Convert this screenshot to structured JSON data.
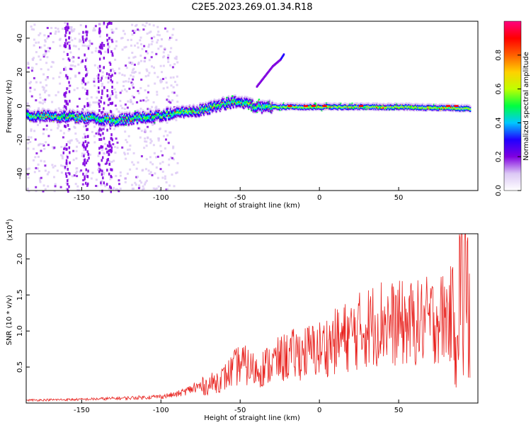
{
  "title": "C2E5.2023.269.01.34.R18",
  "chart_data": [
    {
      "type": "heatmap",
      "xlabel": "Height of straight line (km)",
      "ylabel": "Frequency (Hz)",
      "xlim": [
        -185,
        100
      ],
      "ylim": [
        -50,
        50
      ],
      "xticks": [
        -150,
        -100,
        -50,
        0,
        50
      ],
      "yticks": [
        -40,
        -20,
        0,
        20,
        40
      ],
      "colorbar": {
        "label": "Normalized spectral amplitude",
        "range": [
          0.0,
          1.0
        ],
        "ticks": [
          "0.0",
          "0.2",
          "0.4",
          "0.6",
          "0.8"
        ],
        "colormap": [
          "#ffffff",
          "#dcc8f5",
          "#8000e0",
          "#2000ff",
          "#00c8ff",
          "#00ff40",
          "#c0ff00",
          "#ffd000",
          "#ff6000",
          "#ff0000",
          "#ff0080"
        ]
      },
      "ridge": {
        "x": [
          -185,
          -150,
          -130,
          -110,
          -100,
          -90,
          -75,
          -60,
          -50,
          -40,
          -30,
          -20,
          0,
          50,
          95
        ],
        "y": [
          -5,
          -6,
          -8,
          -6,
          -5,
          -3,
          -2,
          2,
          3,
          0,
          0,
          0,
          0,
          0,
          -1
        ]
      },
      "branch": {
        "x": [
          -40,
          -35,
          -30,
          -25,
          -23
        ],
        "y": [
          12,
          18,
          24,
          28,
          31
        ]
      },
      "grid": false
    },
    {
      "type": "line",
      "xlabel": "Height of straight line (km)",
      "ylabel": "SNR (10 * v/v)",
      "multiplier": "(x10",
      "multiplier_exp": "4",
      "xlim": [
        -185,
        100
      ],
      "ylim": [
        0,
        23500
      ],
      "xticks": [
        -150,
        -100,
        -50,
        0,
        50
      ],
      "yticks": [
        5000,
        10000,
        15000,
        20000
      ],
      "ytick_labels": [
        "0.5",
        "1.0",
        "1.5",
        "2.0"
      ],
      "series": [
        {
          "color": "#e8201c",
          "envelope": {
            "x": [
              -185,
              -150,
              -120,
              -100,
              -90,
              -80,
              -70,
              -60,
              -50,
              -40,
              -30,
              -20,
              -10,
              0,
              10,
              20,
              30,
              40,
              45,
              50,
              60,
              70,
              80,
              85,
              88,
              90,
              92,
              95
            ],
            "y": [
              400,
              500,
              700,
              900,
              1200,
              2000,
              2500,
              3500,
              5500,
              4500,
              5500,
              6500,
              7000,
              7500,
              8500,
              9500,
              10500,
              11500,
              11000,
              11000,
              11000,
              11500,
              12000,
              12500,
              15000,
              18000,
              12000,
              13000
            ]
          },
          "peak": {
            "x": 92,
            "y": 23500
          }
        }
      ]
    }
  ]
}
